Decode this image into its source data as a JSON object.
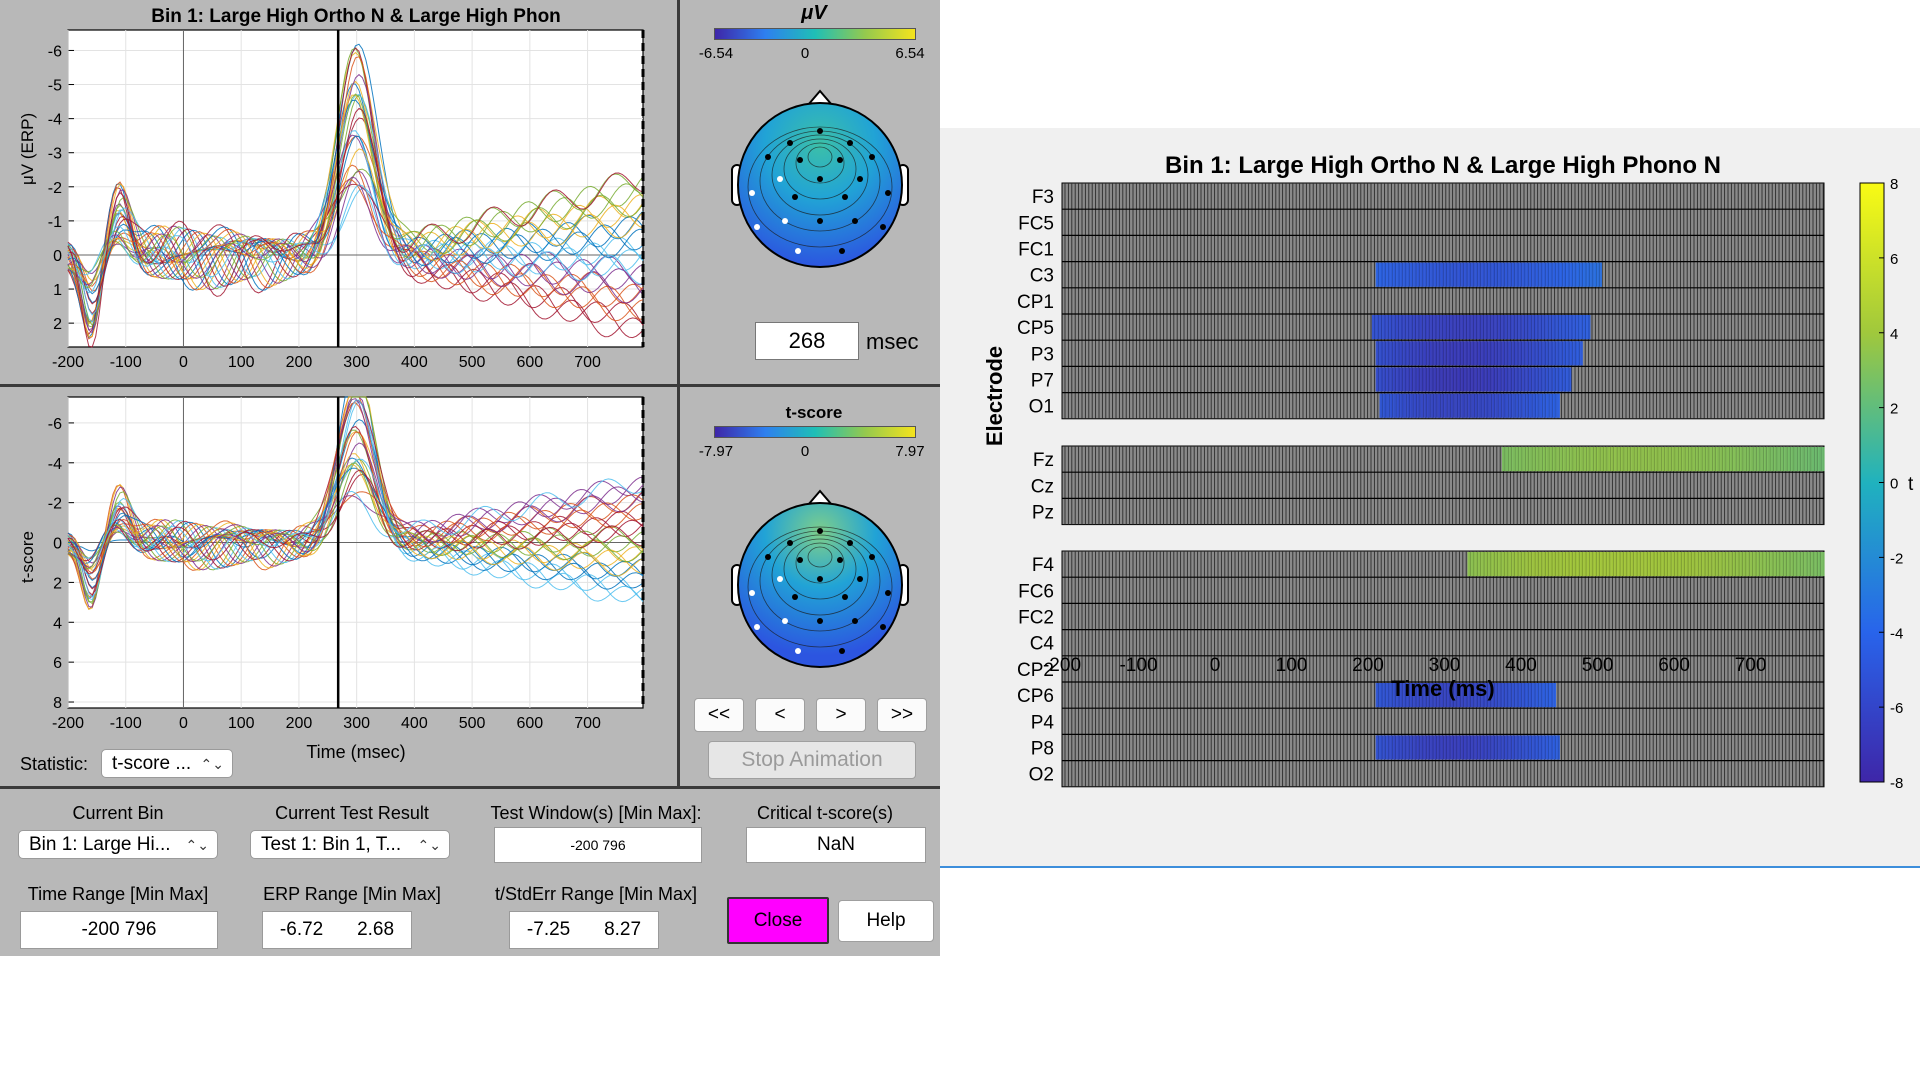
{
  "erp_plot": {
    "title": "Bin 1: Large High Ortho N & Large High Phon",
    "ylabel": "μV (ERP)",
    "yticks": [
      "-6",
      "-5",
      "-4",
      "-3",
      "-2",
      "-1",
      "0",
      "1",
      "2"
    ],
    "xticks": [
      "-200",
      "-100",
      "0",
      "100",
      "200",
      "300",
      "400",
      "500",
      "600",
      "700"
    ]
  },
  "tscore_plot": {
    "ylabel": "t-score",
    "yticks": [
      "-6",
      "-4",
      "-2",
      "0",
      "2",
      "4",
      "6",
      "8"
    ],
    "xticks": [
      "-200",
      "-100",
      "0",
      "100",
      "200",
      "300",
      "400",
      "500",
      "600",
      "700"
    ],
    "xlabel": "Time (msec)"
  },
  "topo_uv": {
    "title": "μV",
    "min_label": "-6.54",
    "zero_label": "0",
    "max_label": "6.54"
  },
  "topo_t": {
    "title": "t-score",
    "min_label": "-7.97",
    "zero_label": "0",
    "max_label": "7.97"
  },
  "latency": {
    "value": "268",
    "unit": "msec"
  },
  "statistic": {
    "label": "Statistic:",
    "value": "t-score ..."
  },
  "nav": {
    "first": "<<",
    "prev": "<",
    "next": ">",
    "last": ">>",
    "stop": "Stop Animation"
  },
  "controls": {
    "current_bin_label": "Current Bin",
    "current_bin_value": "Bin 1: Large Hi...",
    "current_test_label": "Current Test Result",
    "current_test_value": "Test 1: Bin 1, T...",
    "test_window_label": "Test Window(s) [Min Max]:",
    "test_window_value": "-200  796",
    "critical_label": "Critical t-score(s)",
    "critical_value": "NaN",
    "time_range_label": "Time Range [Min Max]",
    "time_range_value": "-200  796",
    "erp_range_label": "ERP Range [Min Max]",
    "erp_range_min": "-6.72",
    "erp_range_max": "2.68",
    "tstd_range_label": "t/StdErr Range [Min Max]",
    "tstd_range_min": "-7.25",
    "tstd_range_max": "8.27",
    "close_label": "Close",
    "help_label": "Help"
  },
  "colors": {
    "close_button": "#ff00ff",
    "panel_bg": "#b8b8b8"
  },
  "chart_data": {
    "type": "heatmap",
    "title": "Bin 1: Large High Ortho N & Large High Phono N",
    "xlabel": "Time (ms)",
    "ylabel": "Electrode",
    "xlim": [
      -200,
      796
    ],
    "xticks": [
      "-200",
      "-100",
      "0",
      "100",
      "200",
      "300",
      "400",
      "500",
      "600",
      "700"
    ],
    "colorbar_label": "t",
    "colorbar_ticks": [
      "8",
      "6",
      "4",
      "2",
      "0",
      "-2",
      "-4",
      "-6",
      "-8"
    ],
    "clim": [
      -8,
      8
    ],
    "groups": [
      {
        "electrodes": [
          "F3",
          "FC5",
          "FC1",
          "C3",
          "CP1",
          "CP5",
          "P3",
          "P7",
          "O1"
        ]
      },
      {
        "electrodes": [
          "Fz",
          "Cz",
          "Pz"
        ]
      },
      {
        "electrodes": [
          "F4",
          "FC6",
          "FC2",
          "C4",
          "CP2",
          "CP6",
          "P4",
          "P8",
          "O2"
        ]
      }
    ],
    "significant_segments": [
      {
        "electrode": "C3",
        "start": 210,
        "end": 505,
        "t": -4.5
      },
      {
        "electrode": "CP5",
        "start": 205,
        "end": 490,
        "t": -5.8
      },
      {
        "electrode": "P3",
        "start": 210,
        "end": 480,
        "t": -6.0
      },
      {
        "electrode": "P7",
        "start": 210,
        "end": 465,
        "t": -6.2
      },
      {
        "electrode": "O1",
        "start": 215,
        "end": 450,
        "t": -5.5
      },
      {
        "electrode": "Fz",
        "start": 375,
        "end": 796,
        "t": 3.2
      },
      {
        "electrode": "F4",
        "start": 330,
        "end": 796,
        "t": 3.8
      },
      {
        "electrode": "CP6",
        "start": 210,
        "end": 445,
        "t": -5.5
      },
      {
        "electrode": "P8",
        "start": 210,
        "end": 450,
        "t": -5.8
      }
    ]
  }
}
